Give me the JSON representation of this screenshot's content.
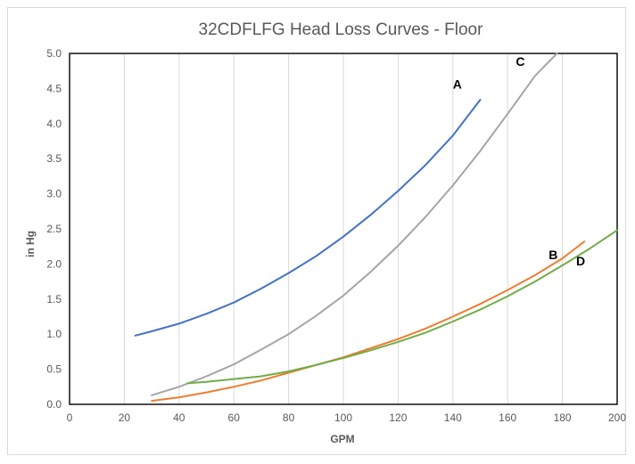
{
  "chart_data": {
    "type": "line",
    "title": "32CDFLFG Head Loss Curves - Floor",
    "xlabel": "GPM",
    "ylabel": "in Hg",
    "xlim": [
      0,
      200
    ],
    "ylim": [
      0,
      5
    ],
    "x_ticks": [
      "0",
      "20",
      "40",
      "60",
      "80",
      "100",
      "120",
      "140",
      "160",
      "180",
      "200"
    ],
    "y_ticks": [
      "0.0",
      "0.5",
      "1.0",
      "1.5",
      "2.0",
      "2.5",
      "3.0",
      "3.5",
      "4.0",
      "4.5",
      "5.0"
    ],
    "grid": "vertical",
    "legend": "none",
    "series": [
      {
        "name": "A",
        "color": "#4472c4",
        "x": [
          24,
          30,
          40,
          50,
          60,
          70,
          80,
          90,
          100,
          110,
          120,
          130,
          140,
          150
        ],
        "y": [
          0.98,
          1.04,
          1.15,
          1.29,
          1.45,
          1.65,
          1.87,
          2.11,
          2.39,
          2.7,
          3.04,
          3.41,
          3.83,
          4.34
        ]
      },
      {
        "name": "B",
        "color": "#ed7d31",
        "x": [
          30,
          40,
          50,
          60,
          70,
          80,
          90,
          100,
          110,
          120,
          130,
          140,
          150,
          160,
          170,
          180,
          188
        ],
        "y": [
          0.05,
          0.1,
          0.17,
          0.25,
          0.34,
          0.45,
          0.56,
          0.67,
          0.8,
          0.93,
          1.08,
          1.25,
          1.43,
          1.63,
          1.84,
          2.08,
          2.32
        ]
      },
      {
        "name": "C",
        "color": "#a5a5a5",
        "x": [
          30,
          40,
          50,
          60,
          70,
          80,
          90,
          100,
          110,
          120,
          130,
          140,
          150,
          160,
          170,
          178
        ],
        "y": [
          0.13,
          0.25,
          0.4,
          0.57,
          0.78,
          1.0,
          1.26,
          1.55,
          1.89,
          2.26,
          2.67,
          3.12,
          3.61,
          4.14,
          4.68,
          5.0
        ]
      },
      {
        "name": "D",
        "color": "#70ad47",
        "x": [
          43,
          50,
          60,
          70,
          80,
          90,
          100,
          110,
          120,
          130,
          140,
          150,
          160,
          170,
          180,
          190,
          200
        ],
        "y": [
          0.3,
          0.32,
          0.36,
          0.4,
          0.47,
          0.56,
          0.66,
          0.77,
          0.89,
          1.02,
          1.18,
          1.35,
          1.54,
          1.75,
          1.98,
          2.22,
          2.48
        ]
      }
    ]
  }
}
